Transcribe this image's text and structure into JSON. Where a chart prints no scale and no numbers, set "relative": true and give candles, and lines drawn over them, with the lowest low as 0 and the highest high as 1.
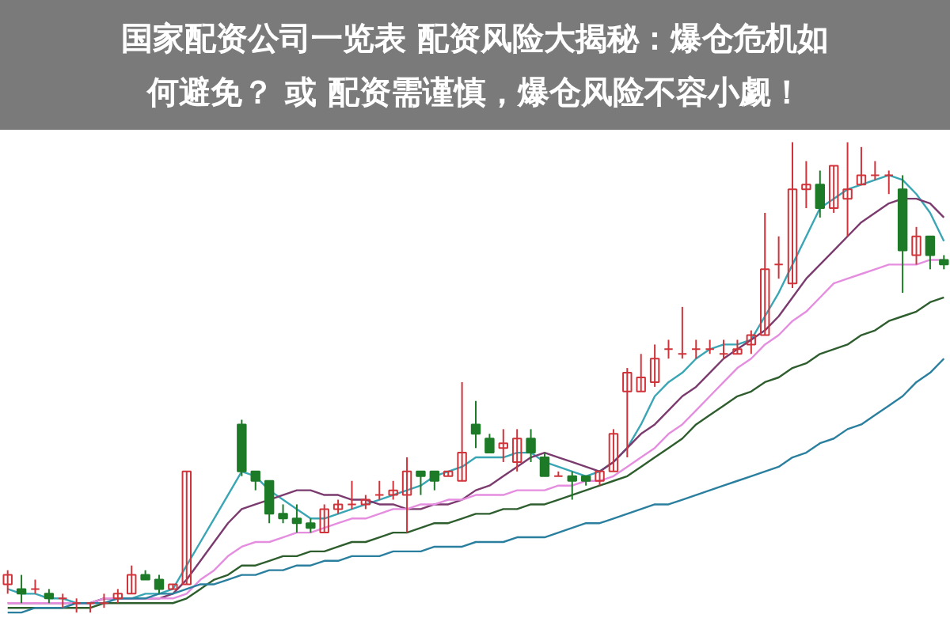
{
  "chart_data": {
    "type": "candlestick",
    "relative": true,
    "title": "国家配资公司一览表 配资风险大揭秘：爆仓危机如何避免？ 或 配资需谨慎，爆仓风险不容小觑！",
    "categories": [
      null,
      null,
      null,
      null,
      null,
      null,
      null,
      null,
      null,
      null,
      null,
      null,
      null,
      null,
      null,
      null,
      null,
      null,
      null,
      null,
      null,
      null,
      null,
      null,
      null,
      null,
      null,
      null,
      null,
      null,
      null,
      null,
      null,
      null,
      null,
      null,
      null,
      null,
      null,
      null,
      null,
      null,
      null,
      null,
      null,
      null,
      null,
      null,
      null,
      null,
      null,
      null,
      null,
      null,
      null,
      null,
      null,
      null,
      null,
      null,
      null,
      null,
      null,
      null,
      null,
      null,
      null,
      null,
      null
    ],
    "ohlc": [
      [
        0.06,
        0.09,
        0.04,
        0.08
      ],
      [
        0.05,
        0.08,
        0.02,
        0.04
      ],
      [
        0.05,
        0.07,
        0.04,
        0.05
      ],
      [
        0.04,
        0.05,
        0.02,
        0.03
      ],
      [
        0.03,
        0.04,
        0.01,
        0.03
      ],
      [
        0.02,
        0.03,
        0.0,
        0.02
      ],
      [
        0.02,
        0.02,
        0.0,
        0.02
      ],
      [
        0.02,
        0.04,
        0.01,
        0.02
      ],
      [
        0.03,
        0.05,
        0.02,
        0.04
      ],
      [
        0.04,
        0.1,
        0.04,
        0.08
      ],
      [
        0.08,
        0.09,
        0.07,
        0.07
      ],
      [
        0.07,
        0.08,
        0.04,
        0.05
      ],
      [
        0.05,
        0.06,
        0.05,
        0.06
      ],
      [
        0.06,
        0.3,
        0.06,
        0.3
      ],
      null,
      null,
      null,
      [
        0.4,
        0.41,
        0.29,
        0.3
      ],
      [
        0.3,
        0.3,
        0.26,
        0.28
      ],
      [
        0.28,
        0.28,
        0.19,
        0.21
      ],
      [
        0.21,
        0.23,
        0.19,
        0.2
      ],
      [
        0.2,
        0.23,
        0.17,
        0.19
      ],
      [
        0.19,
        0.2,
        0.17,
        0.18
      ],
      [
        0.17,
        0.23,
        0.17,
        0.22
      ],
      [
        0.22,
        0.24,
        0.21,
        0.23
      ],
      [
        0.23,
        0.28,
        0.22,
        0.23
      ],
      [
        0.23,
        0.25,
        0.22,
        0.24
      ],
      [
        0.25,
        0.28,
        0.24,
        0.25
      ],
      [
        0.25,
        0.28,
        0.24,
        0.26
      ],
      [
        0.25,
        0.33,
        0.17,
        0.3
      ],
      [
        0.3,
        0.3,
        0.25,
        0.29
      ],
      [
        0.3,
        0.3,
        0.26,
        0.28
      ],
      [
        0.29,
        0.3,
        0.29,
        0.3
      ],
      [
        0.28,
        0.49,
        0.28,
        0.34
      ],
      [
        0.4,
        0.45,
        0.35,
        0.38
      ],
      [
        0.37,
        0.38,
        0.34,
        0.34
      ],
      [
        0.35,
        0.39,
        0.32,
        0.36
      ],
      [
        0.32,
        0.39,
        0.3,
        0.37
      ],
      [
        0.37,
        0.39,
        0.32,
        0.34
      ],
      [
        0.33,
        0.34,
        0.29,
        0.29
      ],
      [
        0.29,
        0.3,
        0.29,
        0.29
      ],
      [
        0.29,
        0.3,
        0.24,
        0.28
      ],
      [
        0.29,
        0.29,
        0.27,
        0.28
      ],
      [
        0.28,
        0.3,
        0.27,
        0.3
      ],
      [
        0.3,
        0.39,
        0.3,
        0.38
      ],
      [
        0.47,
        0.52,
        0.33,
        0.51
      ],
      [
        0.47,
        0.55,
        0.47,
        0.5
      ],
      [
        0.49,
        0.57,
        0.48,
        0.54
      ],
      [
        0.56,
        0.58,
        0.54,
        0.56
      ],
      [
        0.55,
        0.65,
        0.54,
        0.55
      ],
      [
        0.56,
        0.58,
        0.54,
        0.56
      ],
      [
        0.56,
        0.58,
        0.55,
        0.56
      ],
      [
        0.55,
        0.58,
        0.54,
        0.55
      ],
      [
        0.55,
        0.58,
        0.55,
        0.56
      ],
      [
        0.57,
        0.6,
        0.55,
        0.59
      ],
      [
        0.59,
        0.85,
        0.59,
        0.73
      ],
      [
        0.74,
        0.8,
        0.71,
        0.74
      ],
      [
        0.7,
        1,
        0.69,
        0.9
      ],
      [
        0.9,
        0.96,
        0.86,
        0.91
      ],
      [
        0.91,
        0.94,
        0.84,
        0.86
      ],
      [
        0.86,
        0.95,
        0.85,
        0.95
      ],
      [
        0.88,
        1,
        0.8,
        0.9
      ],
      [
        0.91,
        0.99,
        0.91,
        0.93
      ],
      [
        0.93,
        0.96,
        0.92,
        0.93
      ],
      [
        0.93,
        0.94,
        0.89,
        0.93
      ],
      [
        0.9,
        0.93,
        0.68,
        0.77
      ],
      [
        0.76,
        0.82,
        0.74,
        0.8
      ],
      [
        0.8,
        0.8,
        0.73,
        0.76
      ],
      [
        0.75,
        0.76,
        0.73,
        0.74
      ]
    ],
    "series": [
      {
        "type": "line",
        "color": "#3aa6b5",
        "values": [
          0.05,
          0.04,
          0.04,
          0.03,
          0.03,
          0.02,
          0.02,
          0.03,
          0.03,
          0.03,
          0.04,
          0.04,
          0.05,
          0.1,
          0.15,
          0.2,
          0.25,
          0.3,
          0.29,
          0.26,
          0.24,
          0.22,
          0.2,
          0.2,
          0.21,
          0.22,
          0.23,
          0.24,
          0.25,
          0.26,
          0.27,
          0.29,
          0.3,
          0.31,
          0.33,
          0.33,
          0.33,
          0.34,
          0.34,
          0.32,
          0.31,
          0.3,
          0.29,
          0.3,
          0.32,
          0.35,
          0.4,
          0.46,
          0.49,
          0.51,
          0.54,
          0.56,
          0.57,
          0.57,
          0.58,
          0.63,
          0.68,
          0.74,
          0.8,
          0.86,
          0.88,
          0.9,
          0.91,
          0.92,
          0.93,
          0.92,
          0.89,
          0.85,
          0.79
        ]
      },
      {
        "type": "line",
        "color": "#7b3b6e",
        "values": [
          0.02,
          0.02,
          0.02,
          0.02,
          0.02,
          0.02,
          0.02,
          0.03,
          0.03,
          0.03,
          0.03,
          0.03,
          0.04,
          0.07,
          0.11,
          0.15,
          0.19,
          0.22,
          0.23,
          0.24,
          0.25,
          0.26,
          0.26,
          0.25,
          0.25,
          0.24,
          0.24,
          0.23,
          0.23,
          0.22,
          0.22,
          0.23,
          0.23,
          0.24,
          0.26,
          0.27,
          0.29,
          0.31,
          0.33,
          0.34,
          0.33,
          0.32,
          0.31,
          0.3,
          0.32,
          0.35,
          0.38,
          0.4,
          0.43,
          0.46,
          0.48,
          0.51,
          0.54,
          0.56,
          0.58,
          0.6,
          0.63,
          0.67,
          0.71,
          0.74,
          0.77,
          0.8,
          0.83,
          0.85,
          0.87,
          0.88,
          0.88,
          0.87,
          0.84
        ]
      },
      {
        "type": "line",
        "color": "#e58ee0",
        "values": [
          0.02,
          0.02,
          0.02,
          0.02,
          0.02,
          0.02,
          0.02,
          0.03,
          0.03,
          0.03,
          0.03,
          0.03,
          0.03,
          0.04,
          0.07,
          0.09,
          0.12,
          0.14,
          0.15,
          0.15,
          0.16,
          0.17,
          0.17,
          0.18,
          0.19,
          0.2,
          0.2,
          0.21,
          0.22,
          0.22,
          0.23,
          0.23,
          0.24,
          0.24,
          0.25,
          0.25,
          0.25,
          0.26,
          0.26,
          0.26,
          0.27,
          0.27,
          0.28,
          0.28,
          0.29,
          0.31,
          0.33,
          0.35,
          0.38,
          0.4,
          0.43,
          0.46,
          0.49,
          0.52,
          0.54,
          0.57,
          0.59,
          0.62,
          0.64,
          0.67,
          0.7,
          0.71,
          0.72,
          0.73,
          0.74,
          0.74,
          0.74,
          0.75,
          0.75
        ]
      },
      {
        "type": "line",
        "color": "#2e5e2e",
        "values": [
          0.01,
          0.01,
          0.01,
          0.01,
          0.01,
          0.01,
          0.01,
          0.02,
          0.02,
          0.02,
          0.02,
          0.02,
          0.02,
          0.03,
          0.05,
          0.07,
          0.08,
          0.1,
          0.1,
          0.11,
          0.12,
          0.12,
          0.13,
          0.13,
          0.14,
          0.15,
          0.15,
          0.16,
          0.17,
          0.17,
          0.18,
          0.19,
          0.19,
          0.2,
          0.21,
          0.21,
          0.22,
          0.22,
          0.23,
          0.23,
          0.24,
          0.25,
          0.26,
          0.27,
          0.28,
          0.29,
          0.31,
          0.33,
          0.35,
          0.37,
          0.4,
          0.42,
          0.44,
          0.46,
          0.47,
          0.49,
          0.5,
          0.52,
          0.53,
          0.55,
          0.56,
          0.57,
          0.59,
          0.6,
          0.62,
          0.63,
          0.64,
          0.66,
          0.67
        ]
      },
      {
        "type": "line",
        "color": "#2a7f9f",
        "values": [
          0.0,
          0.0,
          0.01,
          0.01,
          0.01,
          0.02,
          0.02,
          0.02,
          0.03,
          0.03,
          0.03,
          0.04,
          0.04,
          0.05,
          0.06,
          0.06,
          0.07,
          0.08,
          0.08,
          0.09,
          0.09,
          0.1,
          0.1,
          0.11,
          0.11,
          0.12,
          0.12,
          0.12,
          0.13,
          0.13,
          0.13,
          0.14,
          0.14,
          0.14,
          0.15,
          0.15,
          0.15,
          0.16,
          0.16,
          0.16,
          0.17,
          0.18,
          0.19,
          0.19,
          0.2,
          0.21,
          0.22,
          0.23,
          0.23,
          0.24,
          0.25,
          0.26,
          0.27,
          0.28,
          0.29,
          0.3,
          0.31,
          0.33,
          0.34,
          0.36,
          0.37,
          0.39,
          0.4,
          0.42,
          0.44,
          0.46,
          0.49,
          0.51,
          0.54
        ]
      }
    ]
  }
}
